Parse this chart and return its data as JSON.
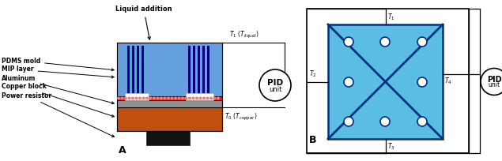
{
  "bg": "white",
  "pA": {
    "copper_fc": "#c05010",
    "alum_fc": "#909090",
    "mip_fc": "#dd2222",
    "pdms_fc": "#4a90d9",
    "elec_fc": "#000080",
    "white_fc": "#ffffff"
  },
  "pB": {
    "blue_fc": "#5bbde4",
    "dark_blue": "#003080",
    "hole_fc": "#ffffff"
  },
  "labels_A": [
    "PDMS mold",
    "MIP layer",
    "Aluminum",
    "Copper block",
    "Power resistor"
  ],
  "T1_text": "T",
  "T0_text": "T",
  "liquid_text": "Liquid addition",
  "A_label": "A",
  "B_label": "B",
  "pid_line1": "PID",
  "pid_line2": "unit"
}
